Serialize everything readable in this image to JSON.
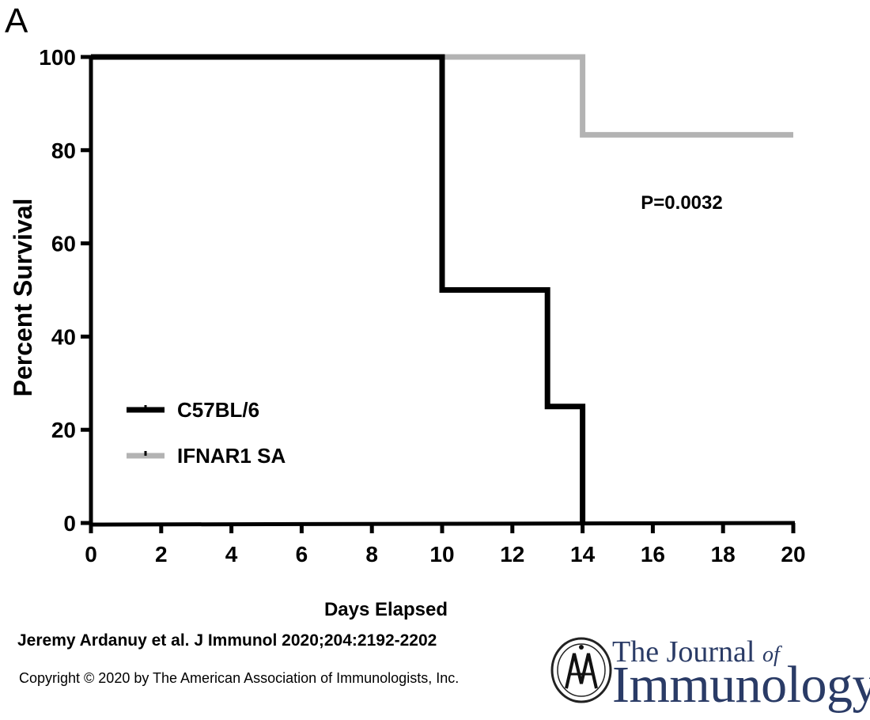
{
  "panel_label": "A",
  "chart_data": {
    "type": "line",
    "step": true,
    "xlabel": "Days Elapsed",
    "ylabel": "Percent Survival",
    "xlim": [
      0,
      20
    ],
    "ylim": [
      0,
      100
    ],
    "xticks": [
      0,
      2,
      4,
      6,
      8,
      10,
      12,
      14,
      16,
      18,
      20
    ],
    "yticks": [
      0,
      20,
      40,
      60,
      80,
      100
    ],
    "grid": false,
    "legend_position": "lower-left",
    "annotation": "P=0.0032",
    "series": [
      {
        "name": "C57BL/6",
        "color": "#000000",
        "x": [
          0,
          10,
          13,
          14
        ],
        "y": [
          100,
          50,
          25,
          0
        ]
      },
      {
        "name": "IFNAR1 SA",
        "color": "#b3b3b3",
        "x": [
          0,
          14,
          20
        ],
        "y": [
          100,
          83.3,
          83.3
        ]
      }
    ]
  },
  "footer": {
    "citation": "Jeremy Ardanuy et al. J Immunol 2020;204:2192-2202",
    "copyright": "Copyright © 2020 by The American Association of Immunologists, Inc.",
    "journal_line1_the": "The Journal",
    "journal_line1_of": "of",
    "journal_line2": "Immunology"
  }
}
